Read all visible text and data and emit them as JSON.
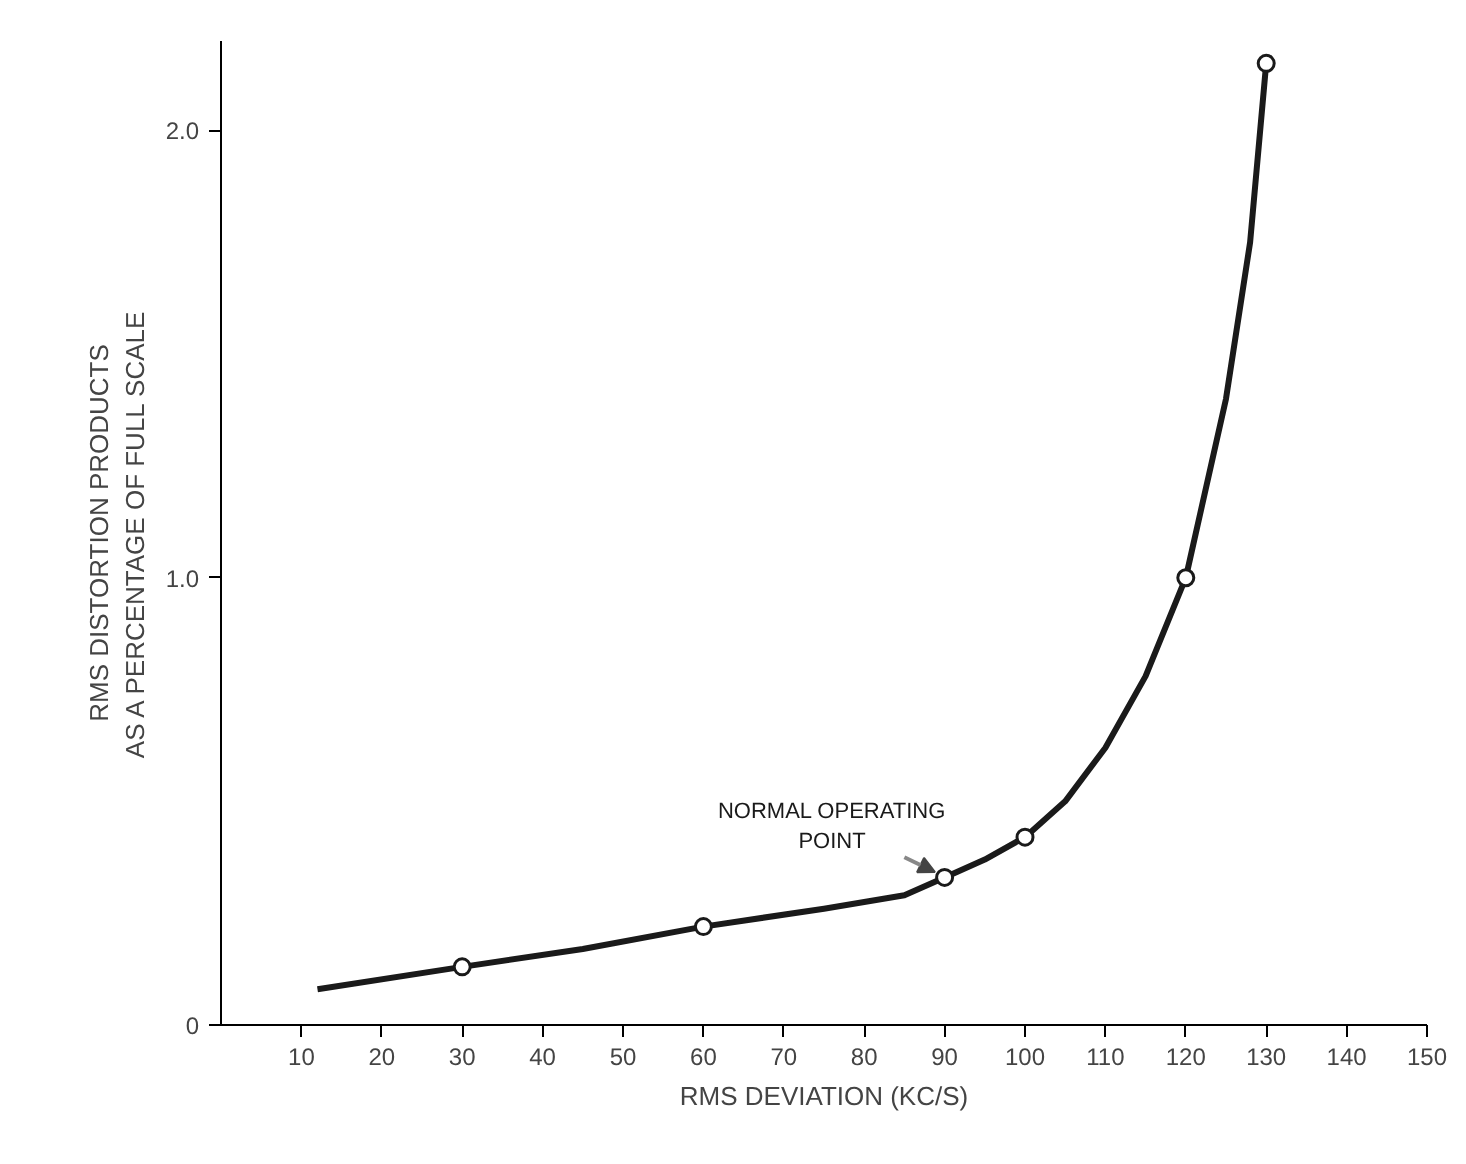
{
  "chart_data": {
    "type": "line",
    "xlabel": "RMS DEVIATION (KC/S)",
    "ylabel": "RMS DISTORTION PRODUCTS\nAS A PERCENTAGE OF FULL SCALE",
    "xlim": [
      0,
      150
    ],
    "ylim": [
      0,
      2.2
    ],
    "xticks": [
      10,
      20,
      30,
      40,
      50,
      60,
      70,
      80,
      90,
      100,
      110,
      120,
      130,
      140,
      150
    ],
    "yticks": [
      0,
      {
        "value": 1,
        "label": "1.0"
      },
      {
        "value": 2,
        "label": "2.0"
      }
    ],
    "grid": false,
    "series": [
      {
        "color": "#1a1a1a",
        "x": [
          12,
          30,
          45,
          60,
          75,
          85,
          90,
          95,
          100,
          105,
          110,
          115,
          120,
          125,
          128,
          130
        ],
        "values": [
          0.08,
          0.13,
          0.17,
          0.22,
          0.26,
          0.29,
          0.33,
          0.37,
          0.42,
          0.5,
          0.62,
          0.78,
          1.0,
          1.4,
          1.75,
          2.15
        ],
        "marker": "none"
      },
      {
        "type": "scatter",
        "color": "#1a1a1a",
        "x": [
          30,
          60,
          90,
          100,
          120,
          130
        ],
        "values": [
          0.13,
          0.22,
          0.33,
          0.42,
          1.0,
          2.15
        ],
        "marker": "circle"
      }
    ],
    "annotations": [
      {
        "text": "NORMAL OPERATING\nPOINT",
        "x": 90,
        "y": 0.33
      }
    ]
  }
}
